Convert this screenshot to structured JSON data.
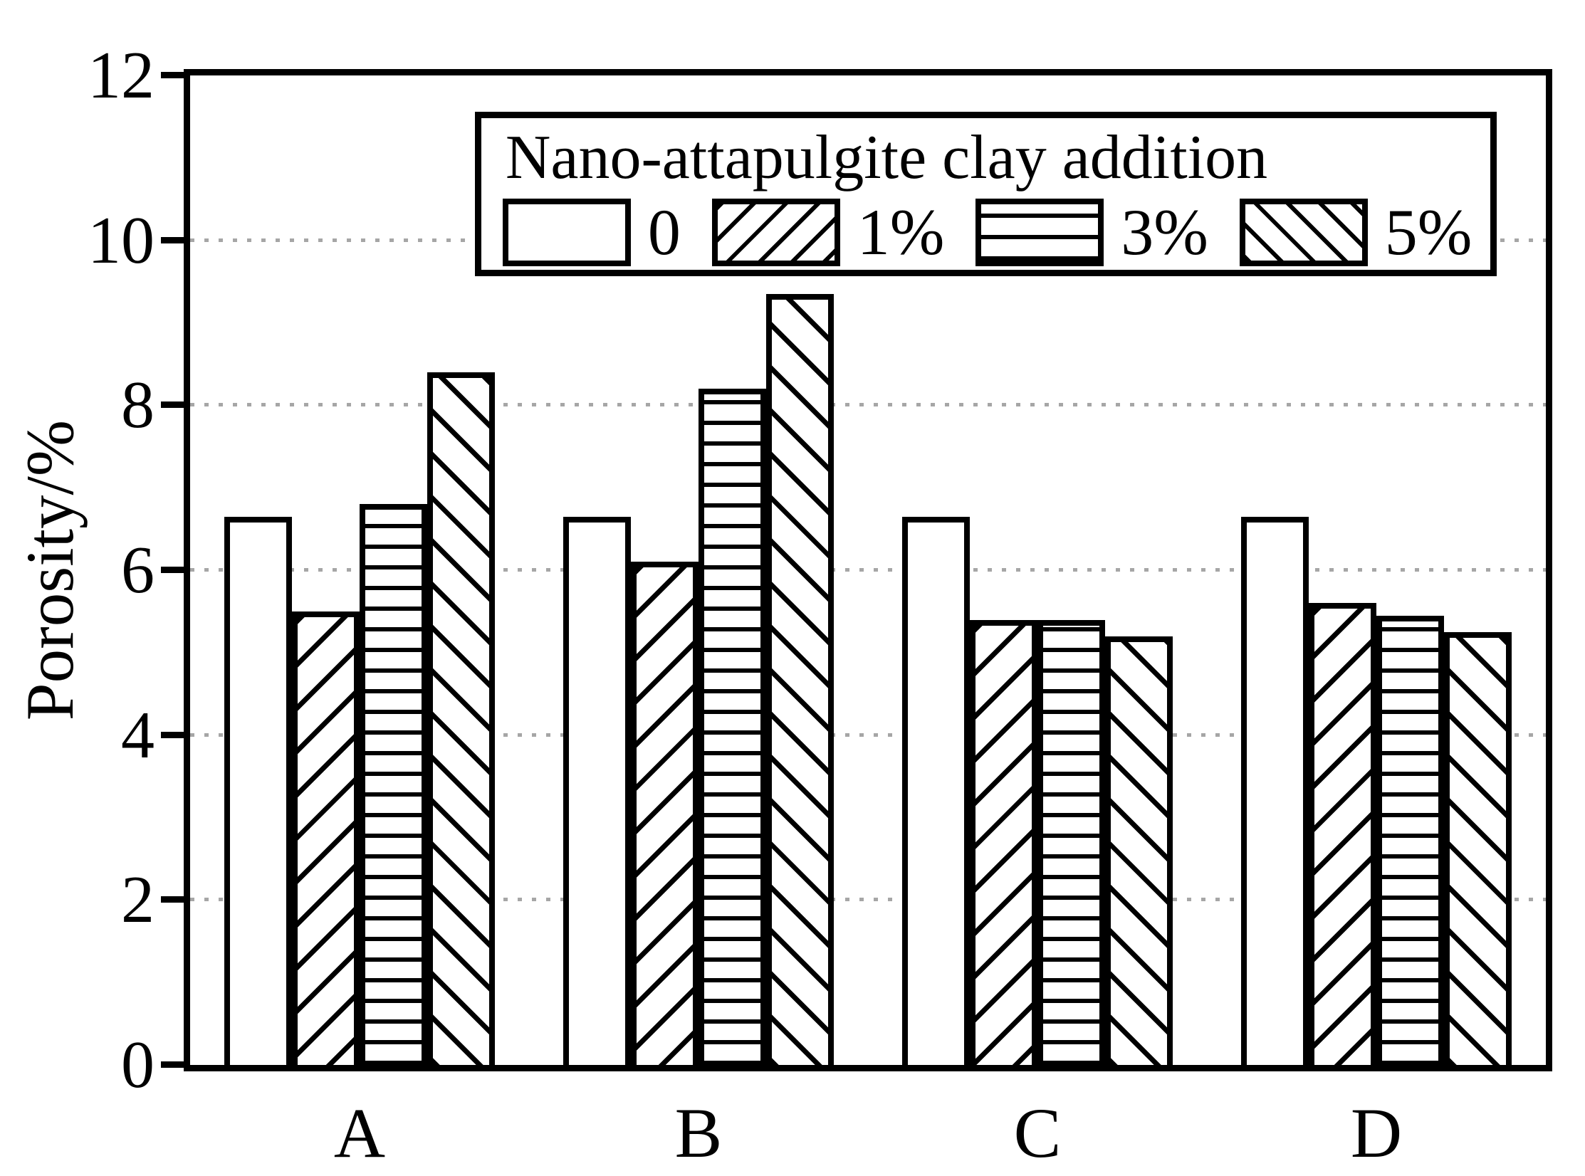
{
  "chart_data": {
    "type": "bar",
    "legend_title": "Nano-attapulgite clay addition",
    "ylabel": "Porosity/%",
    "categories": [
      "A",
      "B",
      "C",
      "D"
    ],
    "series": [
      {
        "name": "0",
        "pattern": "blank",
        "values": [
          6.65,
          6.65,
          6.65,
          6.65
        ]
      },
      {
        "name": "1%",
        "pattern": "diagonal-forward",
        "values": [
          5.5,
          6.1,
          5.4,
          5.6
        ]
      },
      {
        "name": "3%",
        "pattern": "horizontal-lines",
        "values": [
          6.8,
          8.2,
          5.4,
          5.45
        ]
      },
      {
        "name": "5%",
        "pattern": "diagonal-back",
        "values": [
          8.4,
          9.35,
          5.2,
          5.25
        ]
      }
    ],
    "ylim": [
      0,
      12
    ],
    "yticks": [
      0,
      2,
      4,
      6,
      8,
      10,
      12
    ],
    "gridlines": [
      2,
      4,
      6,
      8,
      10
    ],
    "grid_on": true,
    "grid_color": "#a6a6a6",
    "axis_color": "#000000",
    "bar_fill_color": "#ffffff",
    "legend_position": "top-inside"
  }
}
